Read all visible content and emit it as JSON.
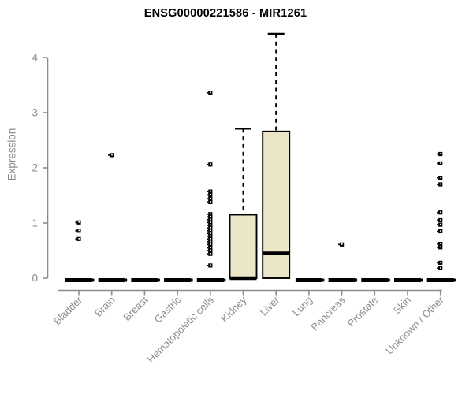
{
  "chart_data": {
    "type": "boxplot",
    "title": "ENSG00000221586 - MIR1261",
    "ylabel": "Expression",
    "xlabel": "",
    "ylim": [
      0,
      4.45
    ],
    "yticks": [
      0,
      1,
      2,
      3,
      4
    ],
    "grid": false,
    "legend": false,
    "categories": [
      "Bladder",
      "Brain",
      "Breast",
      "Gastric",
      "Hematopoietic cells",
      "Kidney",
      "Liver",
      "Lung",
      "Pancreas",
      "Prostate",
      "Skin",
      "Unknown / Other"
    ],
    "series": [
      {
        "name": "Bladder",
        "q1": 0,
        "median": 0,
        "q3": 0,
        "whisker_low": 0,
        "whisker_high": 0,
        "outliers": [
          1.01,
          0.86,
          0.71
        ]
      },
      {
        "name": "Brain",
        "q1": 0,
        "median": 0,
        "q3": 0,
        "whisker_low": 0,
        "whisker_high": 0,
        "outliers": [
          2.23
        ]
      },
      {
        "name": "Breast",
        "q1": 0,
        "median": 0,
        "q3": 0,
        "whisker_low": 0,
        "whisker_high": 0,
        "outliers": []
      },
      {
        "name": "Gastric",
        "q1": 0,
        "median": 0,
        "q3": 0,
        "whisker_low": 0,
        "whisker_high": 0,
        "outliers": []
      },
      {
        "name": "Hematopoietic cells",
        "q1": 0,
        "median": 0,
        "q3": 0,
        "whisker_low": 0,
        "whisker_high": 0,
        "outliers": [
          3.36,
          2.06,
          1.57,
          1.51,
          1.44,
          1.38,
          1.16,
          1.11,
          1.06,
          1.01,
          0.96,
          0.91,
          0.86,
          0.81,
          0.76,
          0.71,
          0.66,
          0.61,
          0.55,
          0.5,
          0.44,
          0.23
        ]
      },
      {
        "name": "Kidney",
        "q1": 0,
        "median": 0,
        "q3": 1.15,
        "whisker_low": 0,
        "whisker_high": 2.71,
        "outliers": []
      },
      {
        "name": "Liver",
        "q1": 0,
        "median": 0.45,
        "q3": 2.66,
        "whisker_low": 0,
        "whisker_high": 4.43,
        "outliers": []
      },
      {
        "name": "Lung",
        "q1": 0,
        "median": 0,
        "q3": 0,
        "whisker_low": 0,
        "whisker_high": 0,
        "outliers": []
      },
      {
        "name": "Pancreas",
        "q1": 0,
        "median": 0,
        "q3": 0,
        "whisker_low": 0,
        "whisker_high": 0,
        "outliers": [
          0.61
        ]
      },
      {
        "name": "Prostate",
        "q1": 0,
        "median": 0,
        "q3": 0,
        "whisker_low": 0,
        "whisker_high": 0,
        "outliers": []
      },
      {
        "name": "Skin",
        "q1": 0,
        "median": 0,
        "q3": 0,
        "whisker_low": 0,
        "whisker_high": 0,
        "outliers": []
      },
      {
        "name": "Unknown / Other",
        "q1": 0,
        "median": 0,
        "q3": 0,
        "whisker_low": 0,
        "whisker_high": 0,
        "outliers": [
          2.25,
          2.08,
          1.82,
          1.7,
          1.19,
          1.05,
          0.97,
          0.85,
          0.62,
          0.56,
          0.28,
          0.18
        ]
      }
    ],
    "colors": {
      "box_fill": "#ECE6C9",
      "box_border": "#000000",
      "median": "#000000",
      "whisker": "#000000",
      "outlier": "#000000",
      "axis": "#8c8c8c",
      "tick_label": "#8c8c8c",
      "title": "#000000",
      "background": "#ffffff"
    }
  }
}
